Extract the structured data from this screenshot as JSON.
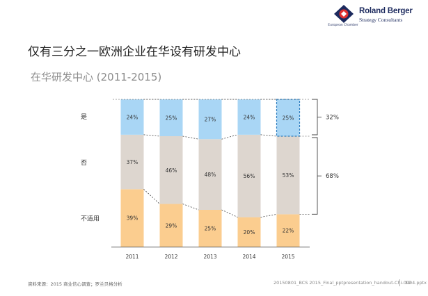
{
  "header": {
    "logo_brand": "Roland Berger",
    "logo_sub": "Strategy Consultants",
    "logo_chamber": "European Chamber"
  },
  "page_title": "仅有三分之一欧洲企业在华设有研发中心",
  "colors": {
    "yes": "#a9d6f5",
    "no": "#ddd6cf",
    "na": "#fbcd8f",
    "highlight_border": "#2f7fc0",
    "text": "#333333"
  },
  "chart_data": {
    "type": "bar",
    "stacked": true,
    "percent": true,
    "title": "在华研发中心 (2011-2015)",
    "categories": [
      "2011",
      "2012",
      "2013",
      "2014",
      "2015"
    ],
    "series": [
      {
        "name": "不适用",
        "values": [
          39,
          29,
          25,
          20,
          22
        ]
      },
      {
        "name": "否",
        "values": [
          37,
          46,
          48,
          56,
          53
        ]
      },
      {
        "name": "是",
        "values": [
          24,
          25,
          27,
          24,
          25
        ]
      }
    ],
    "highlight": {
      "category": "2015",
      "series": "是"
    },
    "annotations": [
      {
        "label": "32%",
        "series": "是"
      },
      {
        "label": "68%",
        "series": "否"
      }
    ],
    "ylim": [
      0,
      100
    ]
  },
  "footer": {
    "source": "资料来源：2015 商业信心调查；罗兰贝格分析",
    "file": "20150801_BCS 2015_Final_pptpresentation_handout-Chi-0904.pptx",
    "page": "19"
  }
}
